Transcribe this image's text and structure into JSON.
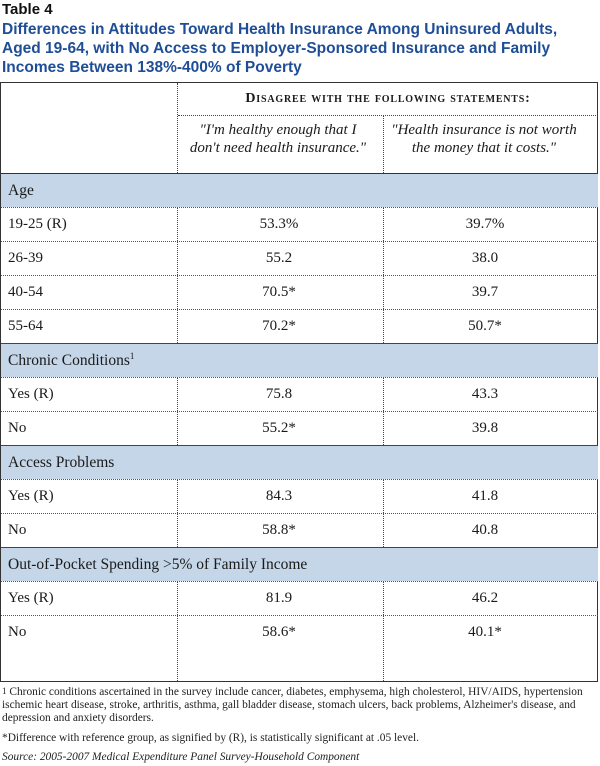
{
  "header": {
    "table_label": "Table 4",
    "title_lines": [
      "Differences in Attitudes Toward Health Insurance Among Uninsured Adults,",
      "Aged 19-64, with No Access to Employer-Sponsored Insurance and Family",
      "Incomes Between 138%-400% of Poverty"
    ]
  },
  "columns": {
    "group_header": "Disagree with the following statements:",
    "col1_lines": [
      "\"I'm healthy enough that I",
      "don't need health insurance.\""
    ],
    "col2_lines": [
      "\"Health insurance is not worth",
      "the money that it costs.\""
    ]
  },
  "sections": [
    {
      "label": "Age",
      "sup": "",
      "rows": [
        {
          "label": "19-25 (R)",
          "v1": "53.3%",
          "v2": "39.7%"
        },
        {
          "label": "26-39",
          "v1": "55.2",
          "v2": "38.0"
        },
        {
          "label": "40-54",
          "v1": "70.5*",
          "v2": "39.7"
        },
        {
          "label": "55-64",
          "v1": "70.2*",
          "v2": "50.7*"
        }
      ]
    },
    {
      "label": "Chronic Conditions",
      "sup": "1",
      "rows": [
        {
          "label": "Yes (R)",
          "v1": "75.8",
          "v2": "43.3"
        },
        {
          "label": "No",
          "v1": "55.2*",
          "v2": "39.8"
        }
      ]
    },
    {
      "label": "Access Problems",
      "sup": "",
      "rows": [
        {
          "label": "Yes (R)",
          "v1": "84.3",
          "v2": "41.8"
        },
        {
          "label": "No",
          "v1": "58.8*",
          "v2": "40.8"
        }
      ]
    },
    {
      "label": "Out-of-Pocket Spending >5% of Family Income",
      "sup": "",
      "rows": [
        {
          "label": "Yes (R)",
          "v1": "81.9",
          "v2": "46.2"
        },
        {
          "label": "No",
          "v1": "58.6*",
          "v2": "40.1*"
        }
      ]
    }
  ],
  "footnotes": {
    "fn1_marker": "1",
    "fn1_lines": [
      "Chronic conditions ascertained in the survey include cancer, diabetes, emphysema, high cholesterol, HIV/AIDS, hypertension",
      "ischemic heart disease, stroke, arthritis, asthma, gall bladder disease, stomach ulcers, back problems, Alzheimer's disease, and",
      "depression and anxiety disorders."
    ],
    "fn2": "*Difference with reference group, as signified by (R), is statistically significant at .05 level.",
    "source": "Source: 2005-2007 Medical Expenditure Panel Survey-Household Component"
  }
}
